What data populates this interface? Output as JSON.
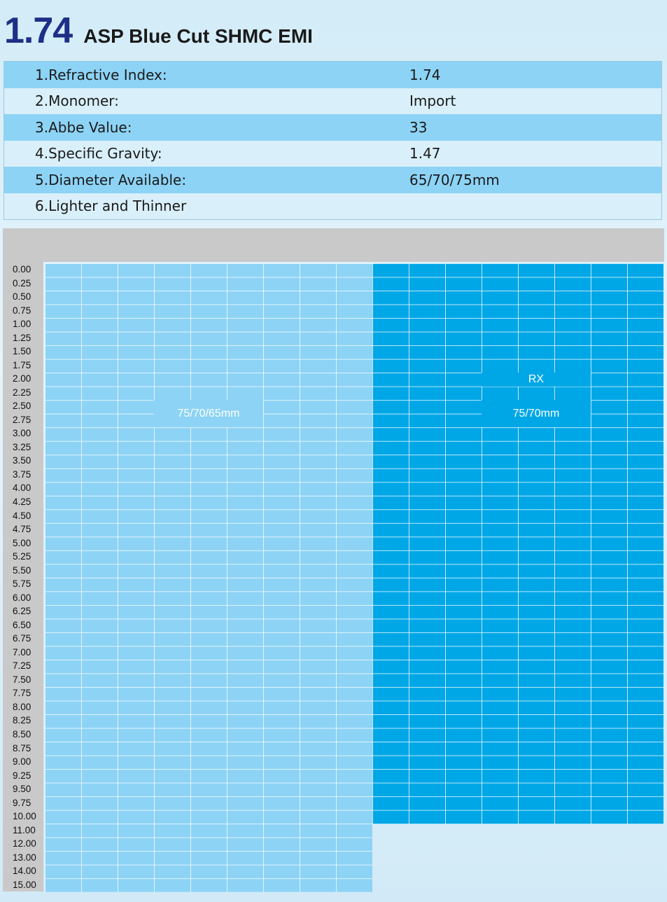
{
  "header": {
    "index_value": "1.74",
    "product_name": "ASP Blue Cut SHMC EMI"
  },
  "specs": [
    {
      "label": "1.Refractive Index:",
      "value": "1.74"
    },
    {
      "label": "2.Monomer:",
      "value": "Import"
    },
    {
      "label": "3.Abbe Value:",
      "value": "33"
    },
    {
      "label": "4.Specific Gravity:",
      "value": "1.47"
    },
    {
      "label": "5.Diameter Available:",
      "value": "65/70/75mm"
    },
    {
      "label": "6.Lighter and Thinner",
      "value": ""
    }
  ],
  "power_chart": {
    "power_labels": [
      "0.00",
      "0.25",
      "0.50",
      "0.75",
      "1.00",
      "1.25",
      "1.50",
      "1.75",
      "2.00",
      "2.25",
      "2.50",
      "2.75",
      "3.00",
      "3.25",
      "3.50",
      "3.75",
      "4.00",
      "4.25",
      "4.50",
      "4.75",
      "5.00",
      "5.25",
      "5.50",
      "5.75",
      "6.00",
      "6.25",
      "6.50",
      "6.75",
      "7.00",
      "7.25",
      "7.50",
      "7.75",
      "8.00",
      "8.25",
      "8.50",
      "8.75",
      "9.00",
      "9.25",
      "9.50",
      "9.75",
      "10.00",
      "11.00",
      "12.00",
      "13.00",
      "14.00",
      "15.00"
    ],
    "stock_region": {
      "label": "75/70/65mm",
      "power_from": "0.00",
      "power_to": "15.00",
      "color": "#8dd3f5"
    },
    "rx_region": {
      "label": "RX",
      "diameter_label": "75/70mm",
      "power_from": "0.00",
      "power_to": "10.00",
      "color": "#00a7e7"
    },
    "header_color": "#c9c9c9"
  }
}
